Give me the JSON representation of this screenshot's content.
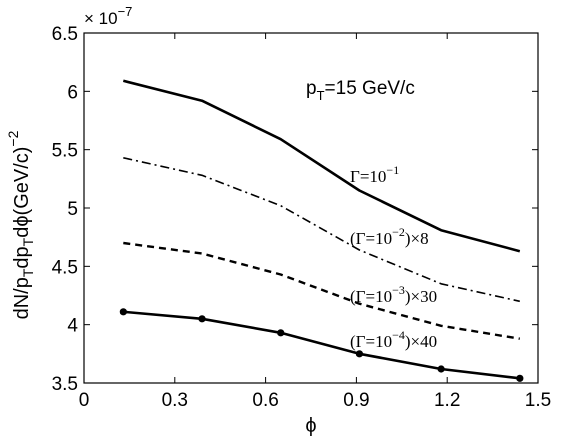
{
  "chart_data": {
    "type": "line",
    "title": "",
    "xlabel": "ϕ",
    "ylabel": "dN/p_T dp_T dϕ(GeV/c)^-2",
    "xlim": [
      0,
      1.5
    ],
    "ylim": [
      3.5,
      6.5
    ],
    "y_multiplier": "× 10^-7",
    "xticks": [
      0,
      0.3,
      0.6,
      0.9,
      1.2,
      1.5
    ],
    "xtick_labels": [
      "0",
      "0.3",
      "0.6",
      "0.9",
      "1.2",
      "1.5"
    ],
    "yticks": [
      3.5,
      4,
      4.5,
      5,
      5.5,
      6,
      6.5
    ],
    "ytick_labels": [
      "3.5",
      "4",
      "4.5",
      "5",
      "5.5",
      "6",
      "6.5"
    ],
    "grid": false,
    "annotation": {
      "main": "p",
      "sub": "T",
      "rest": "=15 GeV/c"
    },
    "series": [
      {
        "label_main": "Γ=10",
        "label_sup": "−1",
        "label_rest": "",
        "style": "solid",
        "markers": false,
        "x": [
          0.13,
          0.39,
          0.65,
          0.91,
          1.18,
          1.44
        ],
        "y": [
          6.09,
          5.92,
          5.59,
          5.15,
          4.81,
          4.63
        ]
      },
      {
        "label_main": "(Γ=10",
        "label_sup": "−2",
        "label_rest": ")×8",
        "style": "dashdot",
        "markers": false,
        "x": [
          0.13,
          0.39,
          0.65,
          0.91,
          1.18,
          1.44
        ],
        "y": [
          5.43,
          5.28,
          5.02,
          4.64,
          4.35,
          4.2
        ]
      },
      {
        "label_main": "(Γ=10",
        "label_sup": "−3",
        "label_rest": ")×30",
        "style": "dashed",
        "markers": false,
        "x": [
          0.13,
          0.39,
          0.65,
          0.91,
          1.18,
          1.44
        ],
        "y": [
          4.7,
          4.61,
          4.43,
          4.18,
          3.99,
          3.88
        ]
      },
      {
        "label_main": "(Γ=10",
        "label_sup": "−4",
        "label_rest": ")×40",
        "style": "solid",
        "markers": true,
        "x": [
          0.13,
          0.39,
          0.65,
          0.91,
          1.18,
          1.44
        ],
        "y": [
          4.11,
          4.05,
          3.93,
          3.75,
          3.62,
          3.54
        ]
      }
    ]
  }
}
